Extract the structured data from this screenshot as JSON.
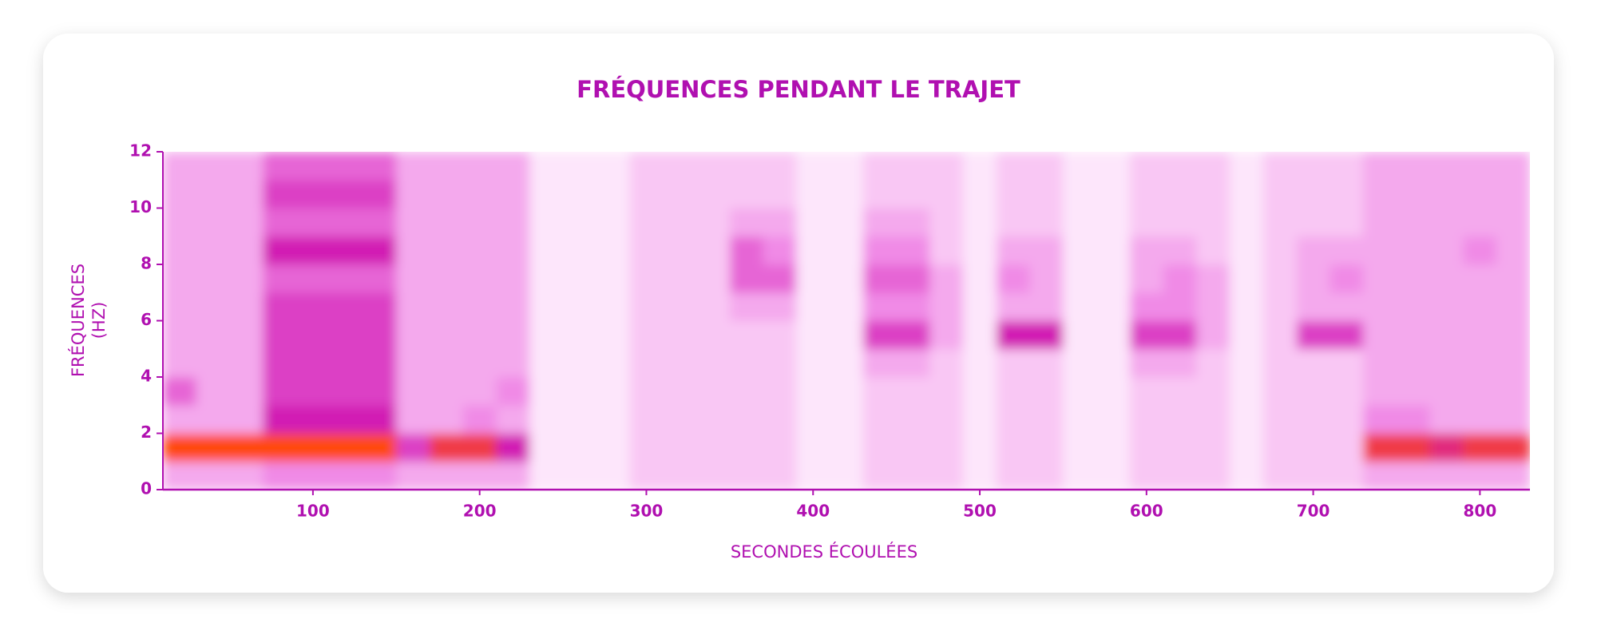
{
  "chart_data": {
    "type": "heatmap",
    "title": "FRÉQUENCES PENDANT LE TRAJET",
    "x_label": "SECONDES ÉCOULÉES",
    "y_label": "FRÉQUENCES (HZ)",
    "x": [
      10,
      30,
      50,
      70,
      90,
      110,
      130,
      150,
      170,
      190,
      210,
      230,
      250,
      270,
      290,
      310,
      330,
      350,
      370,
      390,
      410,
      430,
      450,
      470,
      490,
      510,
      530,
      550,
      570,
      590,
      610,
      630,
      650,
      670,
      690,
      710,
      730,
      750,
      770,
      790,
      810
    ],
    "y": [
      0,
      1,
      2,
      3,
      4,
      5,
      6,
      7,
      8,
      9,
      10,
      11
    ],
    "z": [
      [
        3,
        3,
        3,
        4,
        4,
        4,
        4,
        3,
        3,
        3,
        3,
        1,
        1,
        1,
        2,
        2,
        2,
        2,
        2,
        1,
        1,
        2,
        2,
        2,
        1,
        2,
        2,
        1,
        1,
        2,
        2,
        2,
        1,
        2,
        2,
        2,
        3,
        3,
        3,
        3,
        3
      ],
      [
        10,
        10,
        10,
        10,
        10,
        10,
        10,
        6,
        9,
        9,
        7,
        1,
        1,
        1,
        2,
        2,
        2,
        2,
        2,
        1,
        1,
        2,
        2,
        2,
        1,
        2,
        2,
        1,
        1,
        2,
        2,
        2,
        1,
        2,
        2,
        2,
        9,
        9,
        8,
        9,
        9
      ],
      [
        3,
        3,
        3,
        7,
        7,
        7,
        7,
        3,
        3,
        4,
        3,
        1,
        1,
        1,
        2,
        2,
        2,
        2,
        2,
        1,
        1,
        2,
        2,
        2,
        1,
        2,
        2,
        1,
        1,
        2,
        2,
        2,
        1,
        2,
        2,
        2,
        4,
        4,
        3,
        3,
        3
      ],
      [
        5,
        3,
        3,
        6,
        6,
        6,
        6,
        3,
        3,
        3,
        4,
        1,
        1,
        1,
        2,
        2,
        2,
        2,
        2,
        1,
        1,
        2,
        2,
        2,
        1,
        2,
        2,
        1,
        1,
        2,
        2,
        2,
        1,
        2,
        2,
        2,
        3,
        3,
        3,
        3,
        3
      ],
      [
        3,
        3,
        3,
        6,
        6,
        6,
        6,
        3,
        3,
        3,
        3,
        1,
        1,
        1,
        2,
        2,
        2,
        2,
        2,
        1,
        1,
        3,
        3,
        2,
        1,
        2,
        2,
        1,
        1,
        3,
        3,
        2,
        1,
        2,
        2,
        2,
        3,
        3,
        3,
        3,
        3
      ],
      [
        3,
        3,
        3,
        6,
        6,
        6,
        6,
        3,
        3,
        3,
        3,
        1,
        1,
        1,
        2,
        2,
        2,
        2,
        2,
        1,
        1,
        6,
        6,
        3,
        1,
        7,
        7,
        1,
        1,
        6,
        6,
        3,
        1,
        2,
        6,
        6,
        3,
        3,
        3,
        3,
        3
      ],
      [
        3,
        3,
        3,
        6,
        6,
        6,
        6,
        3,
        3,
        3,
        3,
        1,
        1,
        1,
        2,
        2,
        2,
        3,
        3,
        1,
        1,
        4,
        4,
        3,
        1,
        3,
        3,
        1,
        1,
        4,
        4,
        3,
        1,
        2,
        3,
        3,
        3,
        3,
        3,
        3,
        3
      ],
      [
        3,
        3,
        3,
        5,
        5,
        5,
        5,
        3,
        3,
        3,
        3,
        1,
        1,
        1,
        2,
        2,
        2,
        5,
        5,
        1,
        1,
        5,
        5,
        3,
        1,
        4,
        3,
        1,
        1,
        3,
        4,
        3,
        1,
        2,
        3,
        4,
        3,
        3,
        3,
        3,
        3
      ],
      [
        3,
        3,
        3,
        7,
        7,
        7,
        7,
        3,
        3,
        3,
        3,
        1,
        1,
        1,
        2,
        2,
        2,
        5,
        4,
        1,
        1,
        4,
        4,
        2,
        1,
        3,
        3,
        1,
        1,
        3,
        3,
        2,
        1,
        2,
        3,
        3,
        3,
        3,
        3,
        4,
        3
      ],
      [
        3,
        3,
        3,
        5,
        5,
        5,
        5,
        3,
        3,
        3,
        3,
        1,
        1,
        1,
        2,
        2,
        2,
        3,
        3,
        1,
        1,
        3,
        3,
        2,
        1,
        2,
        2,
        1,
        1,
        2,
        2,
        2,
        1,
        2,
        2,
        2,
        3,
        3,
        3,
        3,
        3
      ],
      [
        3,
        3,
        3,
        6,
        6,
        6,
        6,
        3,
        3,
        3,
        3,
        1,
        1,
        1,
        2,
        2,
        2,
        2,
        2,
        1,
        1,
        2,
        2,
        2,
        1,
        2,
        2,
        1,
        1,
        2,
        2,
        2,
        1,
        2,
        2,
        2,
        3,
        3,
        3,
        3,
        3
      ],
      [
        3,
        3,
        3,
        5,
        5,
        5,
        5,
        3,
        3,
        3,
        3,
        1,
        1,
        1,
        2,
        2,
        2,
        2,
        2,
        1,
        1,
        2,
        2,
        2,
        1,
        2,
        2,
        1,
        1,
        2,
        2,
        2,
        1,
        2,
        2,
        2,
        3,
        3,
        3,
        3,
        3
      ]
    ],
    "xlim": [
      10,
      830
    ],
    "ylim": [
      0,
      12
    ],
    "xticks": [
      100,
      200,
      300,
      400,
      500,
      600,
      700,
      800
    ],
    "yticks": [
      0,
      2,
      4,
      6,
      8,
      10,
      12
    ],
    "colors": [
      "#fde6fb",
      "#f08ae6",
      "#d21cb4",
      "#ff4a10"
    ],
    "axis_color": "#b010b0"
  }
}
